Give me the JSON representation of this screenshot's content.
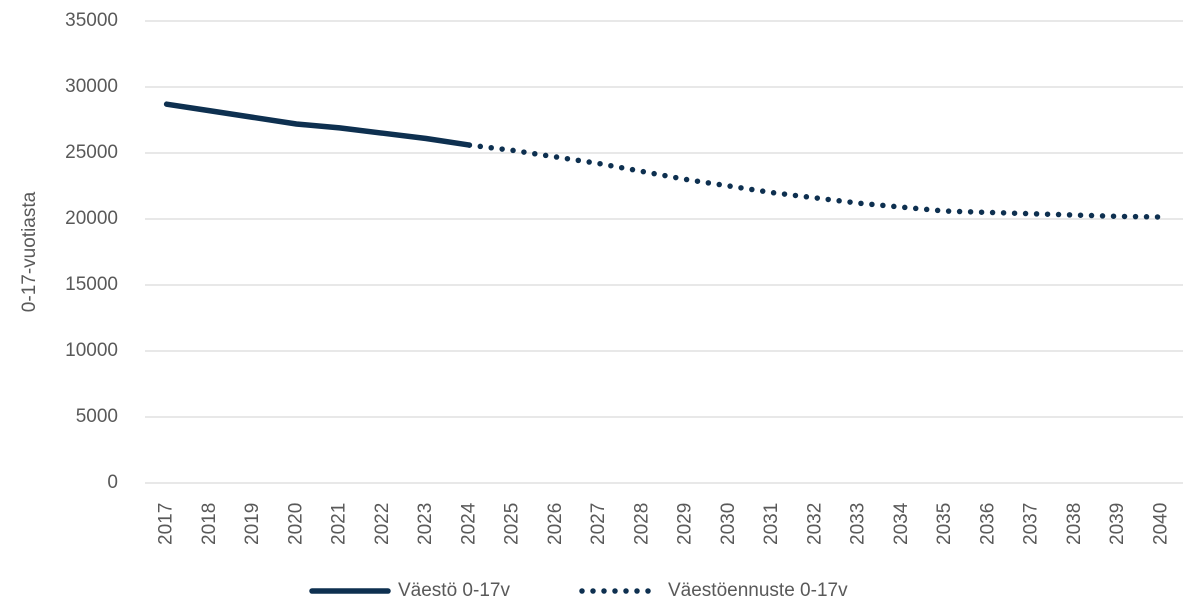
{
  "chart_data": {
    "type": "line",
    "y_label": "0-17-vuotiasta",
    "categories": [
      "2017",
      "2018",
      "2019",
      "2020",
      "2021",
      "2022",
      "2023",
      "2024",
      "2025",
      "2026",
      "2027",
      "2028",
      "2029",
      "2030",
      "2031",
      "2032",
      "2033",
      "2034",
      "2035",
      "2036",
      "2037",
      "2038",
      "2039",
      "2040"
    ],
    "series": [
      {
        "name": "Väestö 0-17v",
        "color": "#0e3050",
        "style": "solid",
        "values": [
          28700,
          28200,
          27700,
          27200,
          26900,
          26500,
          26100,
          25600,
          null,
          null,
          null,
          null,
          null,
          null,
          null,
          null,
          null,
          null,
          null,
          null,
          null,
          null,
          null,
          null
        ]
      },
      {
        "name": "Väestöennuste 0-17v",
        "color": "#0e3050",
        "style": "dotted",
        "values": [
          null,
          null,
          null,
          null,
          null,
          null,
          null,
          25600,
          25200,
          24700,
          24200,
          23600,
          23000,
          22500,
          22000,
          21600,
          21200,
          20900,
          20600,
          20500,
          20400,
          20300,
          20200,
          20150
        ]
      }
    ],
    "ylim": [
      0,
      35000
    ],
    "yticks": [
      0,
      5000,
      10000,
      15000,
      20000,
      25000,
      30000,
      35000
    ],
    "grid": true,
    "legend": "bottom"
  }
}
